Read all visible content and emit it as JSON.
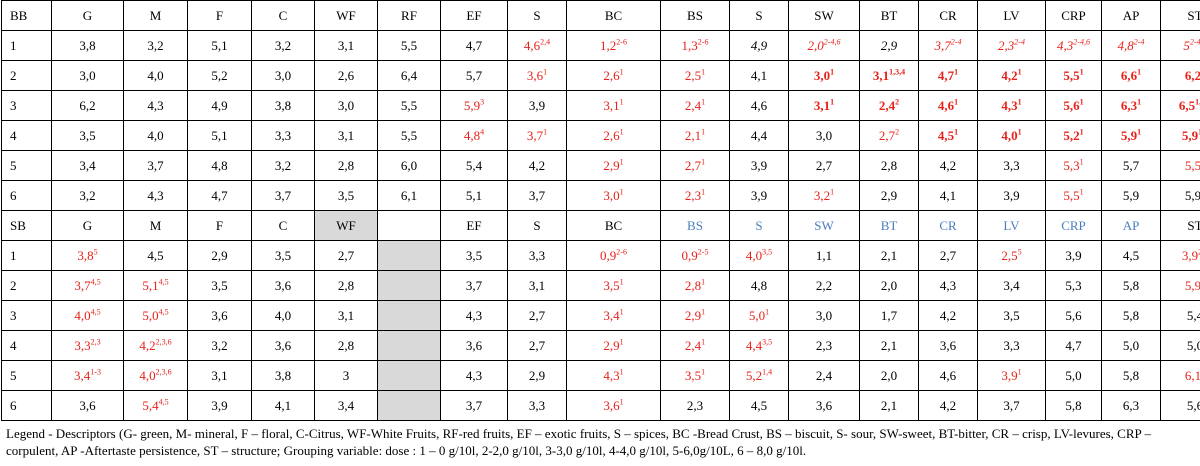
{
  "columns": [
    "G",
    "M",
    "F",
    "C",
    "WF",
    "RF",
    "EF",
    "S",
    "BC",
    "BS",
    "S",
    "SW",
    "BT",
    "CR",
    "LV",
    "CRP",
    "AP",
    "ST"
  ],
  "bb": {
    "label": "BB",
    "header_styles": [
      "",
      "",
      "",
      "",
      "",
      "",
      "",
      "",
      "",
      "",
      "",
      "",
      "",
      "",
      "",
      "",
      "",
      "",
      ""
    ],
    "rows": [
      {
        "id": "1",
        "cells": [
          {
            "v": "3,8"
          },
          {
            "v": "3,2"
          },
          {
            "v": "5,1"
          },
          {
            "v": "3,2"
          },
          {
            "v": "3,1"
          },
          {
            "v": "5,5"
          },
          {
            "v": "4,7"
          },
          {
            "v": "4,6",
            "sup": "2,4",
            "s": "red"
          },
          {
            "v": "1,2",
            "sup": "2-6",
            "s": "red"
          },
          {
            "v": "1,3",
            "sup": "2-6",
            "s": "red"
          },
          {
            "v": "4,9",
            "s": "italic"
          },
          {
            "v": "2,0",
            "sup": "2-4,6",
            "s": "red italic"
          },
          {
            "v": "2,9",
            "s": "italic"
          },
          {
            "v": "3,7",
            "sup": "2-4",
            "s": "red italic"
          },
          {
            "v": "2,3",
            "sup": "2-4",
            "s": "red italic"
          },
          {
            "v": "4,3",
            "sup": "2-4,6",
            "s": "red italic"
          },
          {
            "v": "4,8",
            "sup": "2-4",
            "s": "red italic"
          },
          {
            "v": "5",
            "sup": "2-4,6",
            "s": "red italic"
          }
        ]
      },
      {
        "id": "2",
        "cells": [
          {
            "v": "3,0"
          },
          {
            "v": "4,0"
          },
          {
            "v": "5,2"
          },
          {
            "v": "3,0"
          },
          {
            "v": "2,6"
          },
          {
            "v": "6,4"
          },
          {
            "v": "5,7"
          },
          {
            "v": "3,6",
            "sup": "1",
            "s": "red"
          },
          {
            "v": "2,6",
            "sup": "1",
            "s": "red"
          },
          {
            "v": "2,5",
            "sup": "1",
            "s": "red"
          },
          {
            "v": "4,1"
          },
          {
            "v": "3,0",
            "sup": "1",
            "s": "red bold"
          },
          {
            "v": "3,1",
            "sup": "1,3,4",
            "s": "red bold"
          },
          {
            "v": "4,7",
            "sup": "1",
            "s": "red bold"
          },
          {
            "v": "4,2",
            "sup": "1",
            "s": "red bold"
          },
          {
            "v": "5,5",
            "sup": "1",
            "s": "red bold"
          },
          {
            "v": "6,6",
            "sup": "1",
            "s": "red bold"
          },
          {
            "v": "6,2",
            "sup": "1",
            "s": "red bold"
          }
        ]
      },
      {
        "id": "3",
        "cells": [
          {
            "v": "6,2"
          },
          {
            "v": "4,3"
          },
          {
            "v": "4,9"
          },
          {
            "v": "3,8"
          },
          {
            "v": "3,0"
          },
          {
            "v": "5,5"
          },
          {
            "v": "5,9",
            "sup": "3",
            "s": "red"
          },
          {
            "v": "3,9"
          },
          {
            "v": "3,1",
            "sup": "1",
            "s": "red"
          },
          {
            "v": "2,4",
            "sup": "1",
            "s": "red"
          },
          {
            "v": "4,6"
          },
          {
            "v": "3,1",
            "sup": "1",
            "s": "red bold"
          },
          {
            "v": "2,4",
            "sup": "2",
            "s": "red bold"
          },
          {
            "v": "4,6",
            "sup": "1",
            "s": "red bold"
          },
          {
            "v": "4,3",
            "sup": "1",
            "s": "red bold"
          },
          {
            "v": "5,6",
            "sup": "1",
            "s": "red bold"
          },
          {
            "v": "6,3",
            "sup": "1",
            "s": "red bold"
          },
          {
            "v": "6,5",
            "sup": "1,4,5",
            "s": "red bold"
          }
        ]
      },
      {
        "id": "4",
        "cells": [
          {
            "v": "3,5"
          },
          {
            "v": "4,0"
          },
          {
            "v": "5,1"
          },
          {
            "v": "3,3"
          },
          {
            "v": "3,1"
          },
          {
            "v": "5,5"
          },
          {
            "v": "4,8",
            "sup": "4",
            "s": "red"
          },
          {
            "v": "3,7",
            "sup": "1",
            "s": "red"
          },
          {
            "v": "2,6",
            "sup": "1",
            "s": "red"
          },
          {
            "v": "2,1",
            "sup": "1",
            "s": "red"
          },
          {
            "v": "4,4"
          },
          {
            "v": "3,0"
          },
          {
            "v": "2,7",
            "sup": "2",
            "s": "red"
          },
          {
            "v": "4,5",
            "sup": "1",
            "s": "red bold"
          },
          {
            "v": "4,0",
            "sup": "1",
            "s": "red bold"
          },
          {
            "v": "5,2",
            "sup": "1",
            "s": "red bold"
          },
          {
            "v": "5,9",
            "sup": "1",
            "s": "red bold"
          },
          {
            "v": "5,9",
            "sup": "1,3",
            "s": "red bold"
          }
        ]
      },
      {
        "id": "5",
        "cells": [
          {
            "v": "3,4"
          },
          {
            "v": "3,7"
          },
          {
            "v": "4,8"
          },
          {
            "v": "3,2"
          },
          {
            "v": "2,8"
          },
          {
            "v": "6,0"
          },
          {
            "v": "5,4"
          },
          {
            "v": "4,2"
          },
          {
            "v": "2,9",
            "sup": "1",
            "s": "red"
          },
          {
            "v": "2,7",
            "sup": "1",
            "s": "red"
          },
          {
            "v": "3,9"
          },
          {
            "v": "2,7"
          },
          {
            "v": "2,8"
          },
          {
            "v": "4,2"
          },
          {
            "v": "3,3"
          },
          {
            "v": "5,3",
            "sup": "1",
            "s": "red"
          },
          {
            "v": "5,7"
          },
          {
            "v": "5,5",
            "sup": "3",
            "s": "red"
          }
        ]
      },
      {
        "id": "6",
        "cells": [
          {
            "v": "3,2"
          },
          {
            "v": "4,3"
          },
          {
            "v": "4,7"
          },
          {
            "v": "3,7"
          },
          {
            "v": "3,5"
          },
          {
            "v": "6,1"
          },
          {
            "v": "5,1"
          },
          {
            "v": "3,7"
          },
          {
            "v": "3,0",
            "sup": "1",
            "s": "red"
          },
          {
            "v": "2,3",
            "sup": "1",
            "s": "red"
          },
          {
            "v": "3,9"
          },
          {
            "v": "3,2",
            "sup": "1",
            "s": "red"
          },
          {
            "v": "2,9"
          },
          {
            "v": "4,1"
          },
          {
            "v": "3,9"
          },
          {
            "v": "5,5",
            "sup": "1",
            "s": "red"
          },
          {
            "v": "5,9"
          },
          {
            "v": "5,9",
            "sup": "1"
          }
        ]
      }
    ]
  },
  "sb": {
    "label": "SB",
    "headers": [
      "G",
      "M",
      "F",
      "C",
      "WF",
      "",
      "EF",
      "S",
      "BC",
      "BS",
      "S",
      "SW",
      "BT",
      "CR",
      "LV",
      "CRP",
      "AP",
      "ST"
    ],
    "header_styles": [
      "",
      "",
      "",
      "",
      "",
      "gray",
      "",
      "",
      "",
      "",
      "blue",
      "blue",
      "blue",
      "blue",
      "blue",
      "blue",
      "blue",
      "blue"
    ],
    "rows": [
      {
        "id": "1",
        "cells": [
          {
            "v": "3,8",
            "sup": "5",
            "s": "red"
          },
          {
            "v": "4,5"
          },
          {
            "v": "2,9"
          },
          {
            "v": "3,5"
          },
          {
            "v": "2,7"
          },
          {
            "v": "",
            "s": "gray"
          },
          {
            "v": "3,5"
          },
          {
            "v": "3,3"
          },
          {
            "v": "0,9",
            "sup": "2-6",
            "s": "red"
          },
          {
            "v": "0,9",
            "sup": "2-5",
            "s": "red"
          },
          {
            "v": "4,0",
            "sup": "3,5",
            "s": "red"
          },
          {
            "v": "1,1"
          },
          {
            "v": "2,1"
          },
          {
            "v": "2,7"
          },
          {
            "v": "2,5",
            "sup": "5",
            "s": "red"
          },
          {
            "v": "3,9"
          },
          {
            "v": "4,5"
          },
          {
            "v": "3,9",
            "sup": "2,6",
            "s": "red"
          }
        ]
      },
      {
        "id": "2",
        "cells": [
          {
            "v": "3,7",
            "sup": "4,5",
            "s": "red"
          },
          {
            "v": "5,1",
            "sup": "4,5",
            "s": "red"
          },
          {
            "v": "3,5"
          },
          {
            "v": "3,6"
          },
          {
            "v": "2,8"
          },
          {
            "v": "",
            "s": "gray"
          },
          {
            "v": "3,7"
          },
          {
            "v": "3,1"
          },
          {
            "v": "3,5",
            "sup": "1",
            "s": "red"
          },
          {
            "v": "2,8",
            "sup": "1",
            "s": "red"
          },
          {
            "v": "4,8"
          },
          {
            "v": "2,2"
          },
          {
            "v": "2,0"
          },
          {
            "v": "4,3"
          },
          {
            "v": "3,4"
          },
          {
            "v": "5,3"
          },
          {
            "v": "5,8"
          },
          {
            "v": "5,9",
            "sup": "1",
            "s": "red"
          }
        ]
      },
      {
        "id": "3",
        "cells": [
          {
            "v": "4,0",
            "sup": "4,5",
            "s": "red"
          },
          {
            "v": "5,0",
            "sup": "4,5",
            "s": "red"
          },
          {
            "v": "3,6"
          },
          {
            "v": "4,0"
          },
          {
            "v": "3,1"
          },
          {
            "v": "",
            "s": "gray"
          },
          {
            "v": "4,3"
          },
          {
            "v": "2,7"
          },
          {
            "v": "3,4",
            "sup": "1",
            "s": "red"
          },
          {
            "v": "2,9",
            "sup": "1",
            "s": "red"
          },
          {
            "v": "5,0",
            "sup": "1",
            "s": "red"
          },
          {
            "v": "3,0"
          },
          {
            "v": "1,7"
          },
          {
            "v": "4,2"
          },
          {
            "v": "3,5"
          },
          {
            "v": "5,6"
          },
          {
            "v": "5,8"
          },
          {
            "v": "5,4"
          }
        ]
      },
      {
        "id": "4",
        "cells": [
          {
            "v": "3,3",
            "sup": "2,3",
            "s": "red"
          },
          {
            "v": "4,2",
            "sup": "2,3,6",
            "s": "red"
          },
          {
            "v": "3,2"
          },
          {
            "v": "3,6"
          },
          {
            "v": "2,8"
          },
          {
            "v": "",
            "s": "gray"
          },
          {
            "v": "3,6"
          },
          {
            "v": "2,7"
          },
          {
            "v": "2,9",
            "sup": "1",
            "s": "red"
          },
          {
            "v": "2,4",
            "sup": "1",
            "s": "red"
          },
          {
            "v": "4,4",
            "sup": "3,5",
            "s": "red"
          },
          {
            "v": "2,3"
          },
          {
            "v": "2,1"
          },
          {
            "v": "3,6"
          },
          {
            "v": "3,3"
          },
          {
            "v": "4,7"
          },
          {
            "v": "5,0"
          },
          {
            "v": "5,0"
          }
        ]
      },
      {
        "id": "5",
        "cells": [
          {
            "v": "3,4",
            "sup": "1-3",
            "s": "red"
          },
          {
            "v": "4,0",
            "sup": "2,3,6",
            "s": "red"
          },
          {
            "v": "3,1"
          },
          {
            "v": "3,8"
          },
          {
            "v": "3"
          },
          {
            "v": "",
            "s": "gray"
          },
          {
            "v": "4,3"
          },
          {
            "v": "2,9"
          },
          {
            "v": "4,3",
            "sup": "1",
            "s": "red"
          },
          {
            "v": "3,5",
            "sup": "1",
            "s": "red"
          },
          {
            "v": "5,2",
            "sup": "1,4",
            "s": "red"
          },
          {
            "v": "2,4"
          },
          {
            "v": "2,0"
          },
          {
            "v": "4,6"
          },
          {
            "v": "3,9",
            "sup": "1",
            "s": "red"
          },
          {
            "v": "5,0"
          },
          {
            "v": "5,8"
          },
          {
            "v": "6,1",
            "sup": "1",
            "s": "red"
          }
        ]
      },
      {
        "id": "6",
        "cells": [
          {
            "v": "3,6"
          },
          {
            "v": "5,4",
            "sup": "4,5",
            "s": "red"
          },
          {
            "v": "3,9"
          },
          {
            "v": "4,1"
          },
          {
            "v": "3,4"
          },
          {
            "v": "",
            "s": "gray"
          },
          {
            "v": "3,7"
          },
          {
            "v": "3,3"
          },
          {
            "v": "3,6",
            "sup": "1",
            "s": "red"
          },
          {
            "v": "2,3"
          },
          {
            "v": "4,5"
          },
          {
            "v": "3,6"
          },
          {
            "v": "2,1"
          },
          {
            "v": "4,2"
          },
          {
            "v": "3,7"
          },
          {
            "v": "5,8"
          },
          {
            "v": "6,3"
          },
          {
            "v": "5,6"
          }
        ]
      }
    ]
  },
  "legend": "Legend - Descriptors (G- green, M- mineral, F – floral, C-Citrus, WF-White Fruits, RF-red fruits, EF – exotic fruits, S – spices, BC -Bread Crust, BS – biscuit, S- sour, SW-sweet, BT-bitter, CR – crisp, LV-levures, CRP – corpulent, AP -Aftertaste persistence, ST – structure; Grouping variable: dose : 1 – 0 g/10l, 2-2,0 g/10l, 3-3,0 g/10l, 4-4,0 g/10l, 5-6,0g/10L, 6 – 8,0 g/10l."
}
